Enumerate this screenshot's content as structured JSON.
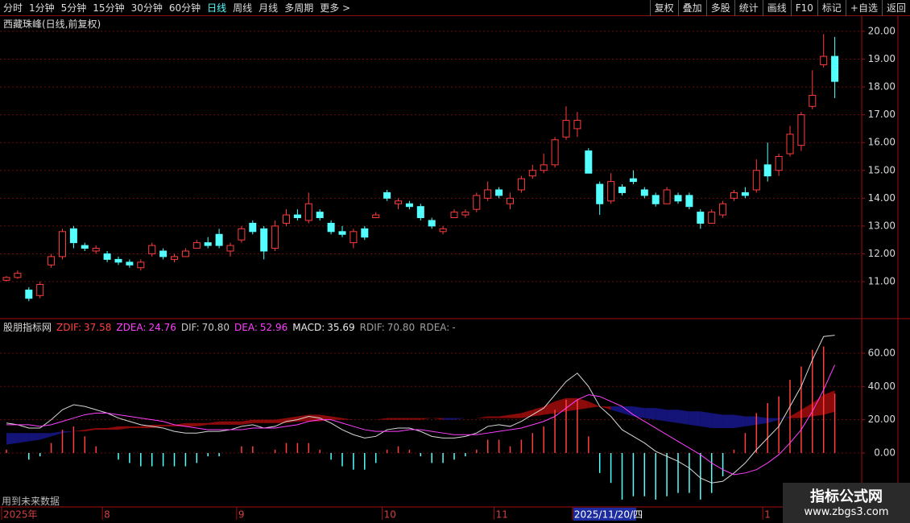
{
  "toolbar": {
    "periods": [
      "分时",
      "1分钟",
      "5分钟",
      "15分钟",
      "30分钟",
      "60分钟",
      "日线",
      "周线",
      "月线",
      "多周期",
      "更多 >"
    ],
    "active": "日线",
    "buttons": [
      "复权",
      "叠加",
      "多股",
      "统计",
      "画线",
      "F10",
      "标记",
      "+自选",
      "返回"
    ]
  },
  "title": "西藏珠峰(日线,前复权)",
  "future_note": "用到未来数据",
  "watermark": {
    "name": "指标公式网",
    "url": "www.zbgs3.com"
  },
  "chart_data": [
    {
      "type": "candlestick",
      "up_color": "#ff3c3c",
      "down_color": "#54ffff",
      "categories": [
        "2025年",
        null,
        null,
        null,
        null,
        null,
        null,
        null,
        null,
        "8",
        null,
        null,
        null,
        null,
        null,
        null,
        null,
        null,
        null,
        null,
        null,
        "9",
        null,
        null,
        null,
        null,
        null,
        null,
        null,
        null,
        null,
        null,
        null,
        null,
        "10",
        null,
        null,
        null,
        null,
        null,
        null,
        null,
        null,
        null,
        "11",
        null,
        null,
        null,
        null,
        null,
        null,
        "2025/11/20/四",
        null,
        null,
        null,
        null,
        null,
        null,
        null,
        null,
        null,
        null,
        null,
        null,
        null,
        null,
        null,
        null,
        "1",
        null,
        null,
        null,
        null,
        null
      ],
      "highlighted_category": "2025/11/20/四",
      "ohlc": [
        [
          11.05,
          11.2,
          11.0,
          11.15
        ],
        [
          11.15,
          11.4,
          11.1,
          11.3
        ],
        [
          10.7,
          10.8,
          10.3,
          10.4
        ],
        [
          10.5,
          11.0,
          10.4,
          10.9
        ],
        [
          11.6,
          12.0,
          11.5,
          11.9
        ],
        [
          11.9,
          12.9,
          11.8,
          12.8
        ],
        [
          12.9,
          13.0,
          12.2,
          12.4
        ],
        [
          12.3,
          12.4,
          12.1,
          12.2
        ],
        [
          12.1,
          12.3,
          12.0,
          12.2
        ],
        [
          12.0,
          12.1,
          11.7,
          11.8
        ],
        [
          11.8,
          11.9,
          11.6,
          11.7
        ],
        [
          11.7,
          11.8,
          11.5,
          11.6
        ],
        [
          11.5,
          11.8,
          11.4,
          11.7
        ],
        [
          12.0,
          12.4,
          11.9,
          12.3
        ],
        [
          12.1,
          12.2,
          11.8,
          11.9
        ],
        [
          11.8,
          12.0,
          11.7,
          11.9
        ],
        [
          11.9,
          12.2,
          11.9,
          12.1
        ],
        [
          12.2,
          12.5,
          12.2,
          12.4
        ],
        [
          12.4,
          12.6,
          12.2,
          12.3
        ],
        [
          12.7,
          12.9,
          12.2,
          12.3
        ],
        [
          12.1,
          12.4,
          11.9,
          12.3
        ],
        [
          12.5,
          13.0,
          12.4,
          12.9
        ],
        [
          13.1,
          13.2,
          12.7,
          12.8
        ],
        [
          12.9,
          13.0,
          11.8,
          12.1
        ],
        [
          12.2,
          13.2,
          12.1,
          13.0
        ],
        [
          13.1,
          13.6,
          13.0,
          13.4
        ],
        [
          13.4,
          13.6,
          13.2,
          13.3
        ],
        [
          13.2,
          14.2,
          13.1,
          13.8
        ],
        [
          13.5,
          13.6,
          13.2,
          13.3
        ],
        [
          13.1,
          13.2,
          12.7,
          12.8
        ],
        [
          12.8,
          13.0,
          12.6,
          12.7
        ],
        [
          12.4,
          12.9,
          12.2,
          12.8
        ],
        [
          12.9,
          13.0,
          12.5,
          12.6
        ],
        [
          13.3,
          13.5,
          13.3,
          13.4
        ],
        [
          14.2,
          14.3,
          13.9,
          14.0
        ],
        [
          13.8,
          14.0,
          13.6,
          13.9
        ],
        [
          13.8,
          13.9,
          13.6,
          13.7
        ],
        [
          13.7,
          13.8,
          13.2,
          13.3
        ],
        [
          13.2,
          13.3,
          12.9,
          13.0
        ],
        [
          12.8,
          13.0,
          12.7,
          12.9
        ],
        [
          13.3,
          13.6,
          13.3,
          13.5
        ],
        [
          13.4,
          13.6,
          13.3,
          13.5
        ],
        [
          13.6,
          14.2,
          13.5,
          14.1
        ],
        [
          14.0,
          14.6,
          13.9,
          14.3
        ],
        [
          14.3,
          14.4,
          14.0,
          14.1
        ],
        [
          13.8,
          14.2,
          13.6,
          14.0
        ],
        [
          14.3,
          14.8,
          14.2,
          14.7
        ],
        [
          14.8,
          15.2,
          14.7,
          15.0
        ],
        [
          15.0,
          15.6,
          14.9,
          15.2
        ],
        [
          15.2,
          16.2,
          15.1,
          16.1
        ],
        [
          16.2,
          17.3,
          16.1,
          16.8
        ],
        [
          16.5,
          17.1,
          16.2,
          16.8
        ],
        [
          15.7,
          15.8,
          14.9,
          14.9
        ],
        [
          14.5,
          14.6,
          13.4,
          13.8
        ],
        [
          13.9,
          14.9,
          13.8,
          14.6
        ],
        [
          14.4,
          14.5,
          14.1,
          14.2
        ],
        [
          14.7,
          15.0,
          14.5,
          14.6
        ],
        [
          14.3,
          14.4,
          14.0,
          14.1
        ],
        [
          14.1,
          14.2,
          13.7,
          13.8
        ],
        [
          13.8,
          14.4,
          13.8,
          14.3
        ],
        [
          14.1,
          14.2,
          13.8,
          13.9
        ],
        [
          14.1,
          14.2,
          13.6,
          13.7
        ],
        [
          13.5,
          13.6,
          12.9,
          13.1
        ],
        [
          13.1,
          13.6,
          13.1,
          13.5
        ],
        [
          13.4,
          13.9,
          13.3,
          13.8
        ],
        [
          14.0,
          14.3,
          13.9,
          14.2
        ],
        [
          14.2,
          14.4,
          14.0,
          14.1
        ],
        [
          14.3,
          15.4,
          14.2,
          15.0
        ],
        [
          15.2,
          16.0,
          14.6,
          14.8
        ],
        [
          15.0,
          15.6,
          14.8,
          15.5
        ],
        [
          15.6,
          16.6,
          15.5,
          16.3
        ],
        [
          15.9,
          17.1,
          15.7,
          17.0
        ],
        [
          17.3,
          18.6,
          17.2,
          17.7
        ],
        [
          18.8,
          19.9,
          18.7,
          19.1
        ],
        [
          19.1,
          19.8,
          17.6,
          18.2
        ]
      ],
      "ylim": [
        9.67,
        20.49
      ],
      "yticks": [
        {
          "value": 20,
          "label": "20.00"
        },
        {
          "value": 19,
          "label": "19.00"
        },
        {
          "value": 18,
          "label": "18.00"
        },
        {
          "value": 17,
          "label": "17.00"
        },
        {
          "value": 16,
          "label": "16.00"
        },
        {
          "value": 15,
          "label": "15.00"
        },
        {
          "value": 14,
          "label": "14.00"
        },
        {
          "value": 13,
          "label": "13.00"
        },
        {
          "value": 12,
          "label": "12.00"
        },
        {
          "value": 11,
          "label": "11.00"
        }
      ],
      "grid": true
    },
    {
      "type": "macd",
      "indicator": "股朋指标网",
      "readouts": [
        {
          "name": "ZDIF:",
          "label": "37.58",
          "color": "#ff4040"
        },
        {
          "name": "ZDEA:",
          "label": "24.76",
          "color": "#ff40ff"
        },
        {
          "name": "DIF:",
          "label": "70.80",
          "color": "#c8c8c8"
        },
        {
          "name": "DEA:",
          "label": "52.96",
          "color": "#ff40ff"
        },
        {
          "name": "MACD:",
          "label": "35.69",
          "color": "#e8e8e8"
        },
        {
          "name": "RDIF:",
          "label": "70.80",
          "color": "#a0a0a0"
        },
        {
          "name": "RDEA:",
          "label": "-",
          "color": "#a0a0a0"
        }
      ],
      "band": {
        "up_color": "#8b0a0a",
        "down_color": "#141478",
        "zdif": [
          5,
          6,
          7,
          8,
          10,
          12,
          13,
          14,
          15,
          15,
          16,
          16,
          16,
          17,
          17,
          17,
          18,
          18,
          18,
          19,
          19,
          19,
          20,
          20,
          20,
          21,
          22,
          23,
          23,
          22,
          21,
          20,
          20,
          20,
          21,
          21,
          21,
          21,
          21,
          20,
          20,
          21,
          21,
          22,
          22,
          23,
          24,
          26,
          28,
          31,
          33,
          33,
          31,
          28,
          26,
          24,
          22,
          21,
          20,
          19,
          18,
          17,
          16,
          15,
          15,
          15,
          16,
          17,
          18,
          20,
          22,
          26,
          30,
          35,
          37.58
        ],
        "zdea": [
          12,
          12,
          12,
          12,
          12,
          13,
          13,
          13,
          14,
          14,
          14,
          15,
          15,
          15,
          16,
          16,
          16,
          16,
          17,
          17,
          17,
          17,
          18,
          18,
          18,
          18,
          19,
          19,
          19,
          20,
          20,
          20,
          20,
          20,
          20,
          20,
          20,
          20,
          21,
          21,
          21,
          21,
          21,
          21,
          21,
          21,
          21,
          22,
          23,
          24,
          25,
          26,
          27,
          28,
          28,
          28,
          28,
          27,
          27,
          26,
          26,
          25,
          25,
          24,
          23,
          23,
          22,
          22,
          21,
          21,
          21,
          21,
          22,
          23,
          24.76
        ]
      },
      "lines": [
        {
          "color": "#d8d8d8",
          "values": [
            18,
            17,
            15,
            15,
            20,
            26,
            29,
            28,
            26,
            24,
            21,
            19,
            17,
            16,
            15,
            13,
            12,
            12,
            13,
            13,
            14,
            16,
            17,
            15,
            16,
            19,
            20,
            22,
            21,
            18,
            14,
            11,
            9,
            10,
            14,
            15,
            15,
            13,
            10,
            9,
            9,
            10,
            12,
            16,
            17,
            16,
            19,
            23,
            27,
            35,
            43,
            48,
            40,
            28,
            22,
            14,
            10,
            6,
            1,
            -2,
            -5,
            -9,
            -15,
            -18,
            -17,
            -12,
            -6,
            2,
            9,
            16,
            28,
            40,
            56,
            70,
            70.8
          ]
        },
        {
          "color": "#ff40ff",
          "values": [
            17,
            17,
            17,
            16,
            17,
            19,
            21,
            23,
            24,
            24,
            23,
            22,
            21,
            20,
            19,
            17,
            16,
            15,
            14,
            14,
            14,
            14,
            15,
            15,
            15,
            16,
            17,
            19,
            20,
            20,
            18,
            16,
            14,
            13,
            13,
            13,
            14,
            14,
            13,
            12,
            11,
            11,
            11,
            12,
            13,
            14,
            15,
            17,
            19,
            22,
            27,
            32,
            35,
            34,
            31,
            28,
            23,
            19,
            15,
            11,
            7,
            3,
            -1,
            -6,
            -10,
            -13,
            -12,
            -10,
            -6,
            -1,
            6,
            14,
            25,
            38,
            52.96
          ]
        }
      ],
      "histogram": {
        "up_color": "#ff4040",
        "down_color": "#54ffff",
        "values": [
          2,
          0,
          -4,
          -2,
          6,
          14,
          16,
          10,
          4,
          0,
          -4,
          -6,
          -8,
          -8,
          -8,
          -8,
          -8,
          -6,
          -2,
          -2,
          0,
          4,
          4,
          0,
          2,
          6,
          6,
          6,
          2,
          -4,
          -8,
          -10,
          -10,
          -6,
          2,
          4,
          2,
          -2,
          -6,
          -6,
          -4,
          -2,
          2,
          8,
          8,
          4,
          8,
          12,
          16,
          26,
          32,
          32,
          10,
          -12,
          -18,
          -28,
          -26,
          -26,
          -28,
          -26,
          -24,
          -24,
          -28,
          -24,
          -14,
          2,
          12,
          24,
          30,
          34,
          44,
          52,
          62,
          64,
          35.69
        ]
      },
      "ylim": [
        -32.4,
        79.8
      ],
      "yticks": [
        {
          "value": 60,
          "label": "60.00"
        },
        {
          "value": 40,
          "label": "40.00"
        },
        {
          "value": 20,
          "label": "20.00"
        },
        {
          "value": 0,
          "label": "0.00"
        }
      ],
      "grid": true
    }
  ]
}
